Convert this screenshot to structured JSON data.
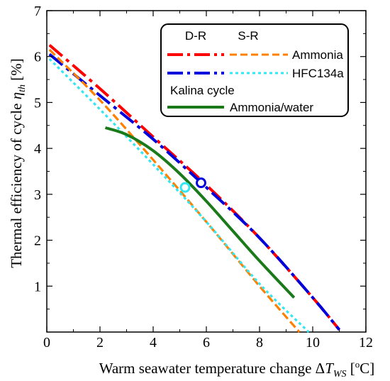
{
  "chart_data": {
    "type": "line",
    "xlabel_parts": [
      "Warm seawater temperature change Δ",
      "T",
      "WS",
      " [",
      "o",
      "C]"
    ],
    "ylabel_parts": [
      "Thermal efficiency of cycle ",
      "η",
      "th",
      " [%]"
    ],
    "xlim": [
      0,
      12
    ],
    "ylim": [
      0,
      7
    ],
    "xticks": [
      "0",
      "2",
      "4",
      "6",
      "8",
      "10",
      "12"
    ],
    "yticks": [
      "1",
      "2",
      "3",
      "4",
      "5",
      "6",
      "7"
    ],
    "grid": false,
    "legend": {
      "placement": "top-right",
      "col_headers": [
        "D-R",
        "S-R"
      ],
      "rows": [
        "Ammonia",
        "HFC134a"
      ],
      "kalina_header": "Kalina cycle",
      "kalina_row": "Ammonia/water"
    },
    "colors": {
      "dr_ammonia": "#ff0000",
      "sr_ammonia": "#ff8000",
      "dr_hfc134a": "#0000dd",
      "sr_hfc134a": "#33e6f0",
      "kalina": "#1a7a1a"
    },
    "series": [
      {
        "name": "D-R Ammonia",
        "color": "#ff0000",
        "style": "dashdot",
        "x": [
          0.1,
          2,
          4,
          6,
          8,
          10,
          11
        ],
        "y": [
          6.25,
          5.3,
          4.25,
          3.2,
          2.05,
          0.75,
          0.05
        ]
      },
      {
        "name": "D-R HFC134a",
        "color": "#0000dd",
        "style": "dashdot",
        "x": [
          0.1,
          2,
          4,
          6,
          8,
          10,
          11
        ],
        "y": [
          6.05,
          5.15,
          4.2,
          3.15,
          2.05,
          0.75,
          0.05
        ]
      },
      {
        "name": "S-R Ammonia",
        "color": "#ff8000",
        "style": "dash",
        "x": [
          0.1,
          2,
          4,
          6,
          8,
          9.5
        ],
        "y": [
          6.15,
          5.05,
          3.75,
          2.4,
          1.0,
          0.0
        ]
      },
      {
        "name": "S-R HFC134a",
        "color": "#33e6f0",
        "style": "dot",
        "x": [
          0.1,
          2,
          4,
          6,
          8,
          9.85
        ],
        "y": [
          5.95,
          4.85,
          3.65,
          2.4,
          1.05,
          0.0
        ]
      },
      {
        "name": "Ammonia/water",
        "color": "#1a7a1a",
        "style": "solid",
        "x": [
          2.2,
          3,
          4,
          5,
          6,
          7,
          8,
          9.3
        ],
        "y": [
          4.45,
          4.3,
          3.95,
          3.45,
          2.85,
          2.2,
          1.55,
          0.75
        ]
      }
    ],
    "markers": [
      {
        "x": 5.8,
        "y": 3.25,
        "color": "#0000dd"
      },
      {
        "x": 5.2,
        "y": 3.15,
        "color": "#33e6f0"
      }
    ]
  }
}
